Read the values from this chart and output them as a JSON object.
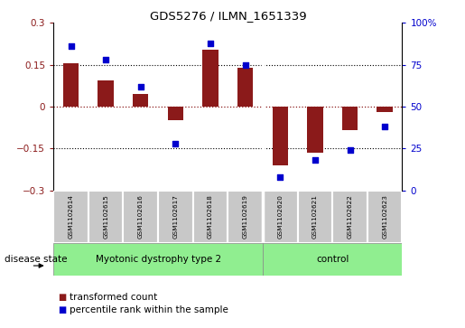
{
  "title": "GDS5276 / ILMN_1651339",
  "samples": [
    "GSM1102614",
    "GSM1102615",
    "GSM1102616",
    "GSM1102617",
    "GSM1102618",
    "GSM1102619",
    "GSM1102620",
    "GSM1102621",
    "GSM1102622",
    "GSM1102623"
  ],
  "bar_values": [
    0.155,
    0.095,
    0.045,
    -0.05,
    0.205,
    0.14,
    -0.21,
    -0.165,
    -0.085,
    -0.02
  ],
  "dot_values": [
    86,
    78,
    62,
    28,
    88,
    75,
    8,
    18,
    24,
    38
  ],
  "group1_label": "Myotonic dystrophy type 2",
  "group2_label": "control",
  "group1_count": 6,
  "group2_count": 4,
  "group_color": "#90EE90",
  "bar_color": "#8B1A1A",
  "dot_color": "#0000CD",
  "ylim_left": [
    -0.3,
    0.3
  ],
  "ylim_right": [
    0,
    100
  ],
  "yticks_left": [
    -0.3,
    -0.15,
    0.0,
    0.15,
    0.3
  ],
  "yticks_right": [
    0,
    25,
    50,
    75,
    100
  ],
  "box_bg_color": "#C8C8C8",
  "separator_after": 5,
  "legend_label1": "transformed count",
  "legend_label2": "percentile rank within the sample",
  "disease_state_label": "disease state",
  "figure_bg": "#ffffff"
}
